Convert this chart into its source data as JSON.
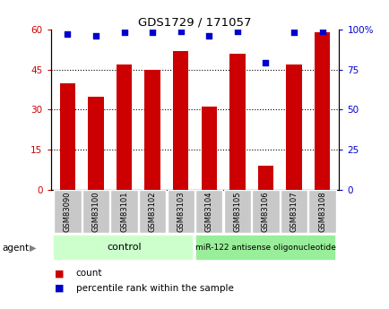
{
  "title": "GDS1729 / 171057",
  "samples": [
    "GSM83090",
    "GSM83100",
    "GSM83101",
    "GSM83102",
    "GSM83103",
    "GSM83104",
    "GSM83105",
    "GSM83106",
    "GSM83107",
    "GSM83108"
  ],
  "counts": [
    40,
    35,
    47,
    45,
    52,
    31,
    51,
    9,
    47,
    59
  ],
  "percentile_ranks": [
    97,
    96,
    98,
    98,
    99,
    96,
    99,
    79,
    98,
    99
  ],
  "bar_color": "#cc0000",
  "dot_color": "#0000cc",
  "yleft_max": 60,
  "yleft_ticks": [
    0,
    15,
    30,
    45,
    60
  ],
  "yright_max": 100,
  "yright_ticks": [
    0,
    25,
    50,
    75,
    100
  ],
  "control_samples": 5,
  "agent_label": "agent",
  "group1_label": "control",
  "group2_label": "miR-122 antisense oligonucleotide",
  "group1_color": "#ccffcc",
  "group2_color": "#99ee99",
  "legend_count_label": "count",
  "legend_pct_label": "percentile rank within the sample",
  "tick_bg_color": "#c8c8c8",
  "bar_width": 0.55
}
